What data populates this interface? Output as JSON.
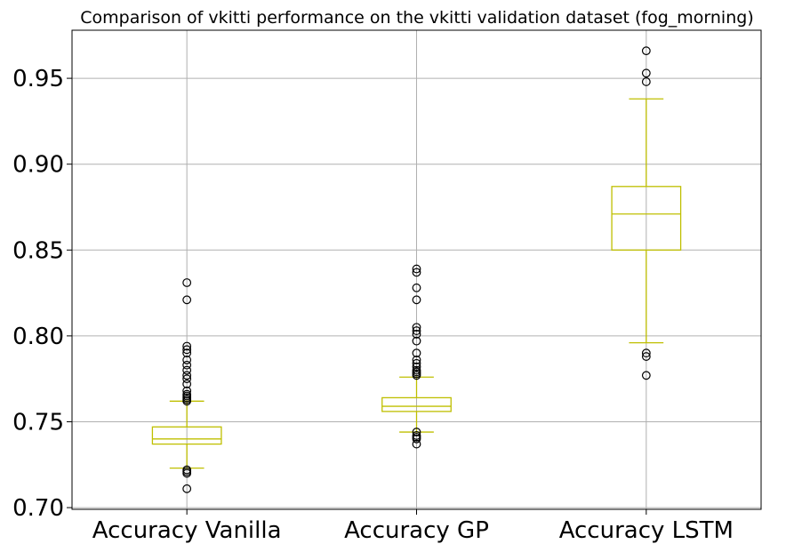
{
  "chart_data": {
    "type": "box",
    "title": "Comparison of vkitti performance on the vkitti validation dataset (fog_morning)",
    "xlabel": "",
    "ylabel": "",
    "ylim": [
      0.699,
      0.978
    ],
    "yticks": [
      0.7,
      0.75,
      0.8,
      0.85,
      0.9,
      0.95
    ],
    "ytick_labels": [
      "0.70",
      "0.75",
      "0.80",
      "0.85",
      "0.90",
      "0.95"
    ],
    "grid": true,
    "box_color": "#bfbf00",
    "flier_color": "#000000",
    "categories": [
      "Accuracy Vanilla",
      "Accuracy GP",
      "Accuracy LSTM"
    ],
    "boxes": [
      {
        "name": "Accuracy Vanilla",
        "whisker_low": 0.723,
        "q1": 0.737,
        "median": 0.74,
        "q3": 0.747,
        "whisker_high": 0.762,
        "fliers": [
          0.831,
          0.821,
          0.794,
          0.792,
          0.79,
          0.786,
          0.783,
          0.78,
          0.777,
          0.775,
          0.772,
          0.768,
          0.766,
          0.765,
          0.764,
          0.763,
          0.762,
          0.722,
          0.721,
          0.72,
          0.711
        ]
      },
      {
        "name": "Accuracy GP",
        "whisker_low": 0.744,
        "q1": 0.756,
        "median": 0.759,
        "q3": 0.764,
        "whisker_high": 0.776,
        "fliers": [
          0.839,
          0.837,
          0.828,
          0.821,
          0.805,
          0.803,
          0.801,
          0.797,
          0.79,
          0.786,
          0.784,
          0.782,
          0.78,
          0.779,
          0.778,
          0.777,
          0.744,
          0.742,
          0.741,
          0.74,
          0.737
        ]
      },
      {
        "name": "Accuracy LSTM",
        "whisker_low": 0.796,
        "q1": 0.85,
        "median": 0.871,
        "q3": 0.887,
        "whisker_high": 0.938,
        "fliers": [
          0.966,
          0.953,
          0.948,
          0.79,
          0.788,
          0.777
        ]
      }
    ]
  }
}
